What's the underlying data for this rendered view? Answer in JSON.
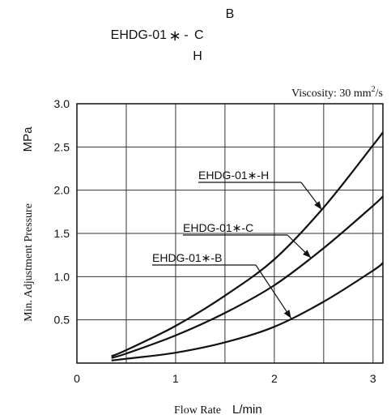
{
  "chart_data": {
    "type": "line",
    "title": {
      "prefix": "EHDG-01",
      "asterisk": "∗",
      "dash": "-",
      "variants": [
        "B",
        "C",
        "H"
      ]
    },
    "viscosity": {
      "label": "Viscosity: 30 mm",
      "sup": "2",
      "suffix": "/s"
    },
    "ylabel": {
      "text": "Min. Adjustment Pressure",
      "unit": "MPa"
    },
    "xlabel": {
      "text": "Flow Rate",
      "unit": "L/min"
    },
    "xlim": [
      0,
      3.1
    ],
    "ylim": [
      0,
      3.0
    ],
    "xticks": [
      0,
      1,
      2,
      3
    ],
    "xtick_labels": [
      "0",
      "1",
      "2",
      "3"
    ],
    "xgrid": [
      0.5,
      1,
      1.5,
      2,
      2.5,
      3
    ],
    "yticks": [
      0.5,
      1.0,
      1.5,
      2.0,
      2.5,
      3.0
    ],
    "ytick_labels": [
      "0.5",
      "1.0",
      "1.5",
      "2.0",
      "2.5",
      "3.0"
    ],
    "grid": true,
    "series": [
      {
        "name": "EHDG-01∗-H",
        "x": [
          0.35,
          0.5,
          1.0,
          1.5,
          2.0,
          2.5,
          3.0,
          3.1
        ],
        "y": [
          0.08,
          0.15,
          0.43,
          0.78,
          1.2,
          1.8,
          2.52,
          2.67
        ]
      },
      {
        "name": "EHDG-01∗-C",
        "x": [
          0.35,
          0.5,
          1.0,
          1.5,
          2.0,
          2.5,
          3.0,
          3.1
        ],
        "y": [
          0.06,
          0.11,
          0.32,
          0.58,
          0.9,
          1.33,
          1.82,
          1.93
        ]
      },
      {
        "name": "EHDG-01∗-B",
        "x": [
          0.35,
          0.5,
          1.0,
          1.5,
          2.0,
          2.5,
          3.0,
          3.1
        ],
        "y": [
          0.03,
          0.05,
          0.12,
          0.24,
          0.42,
          0.71,
          1.07,
          1.16
        ]
      }
    ]
  }
}
